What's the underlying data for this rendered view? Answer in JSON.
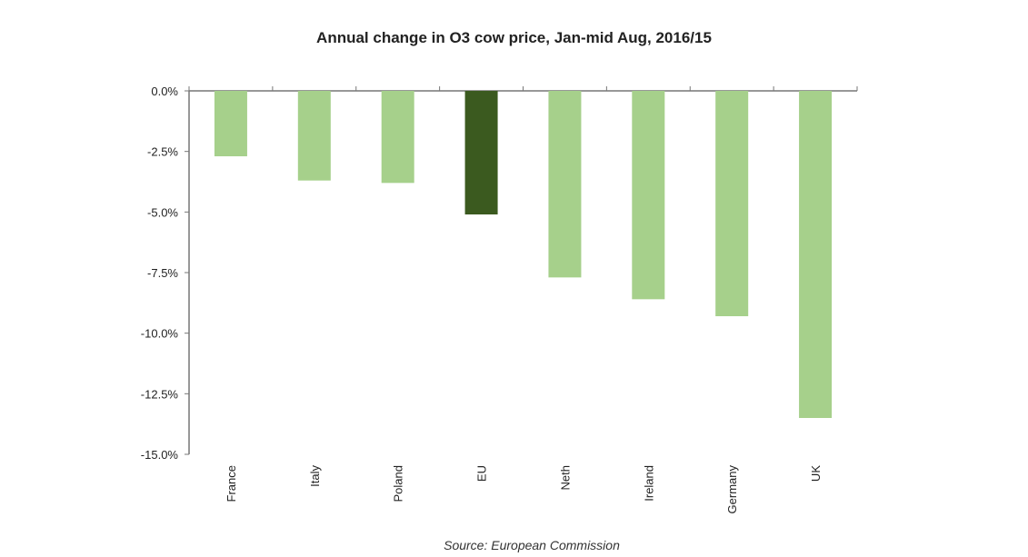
{
  "chart_data": {
    "type": "bar",
    "title": "Annual change in O3 cow price, Jan-mid Aug, 2016/15",
    "source": "Source: European Commission",
    "categories": [
      "France",
      "Italy",
      "Poland",
      "EU",
      "Neth",
      "Ireland",
      "Germany",
      "UK"
    ],
    "values": [
      -2.7,
      -3.7,
      -3.8,
      -5.1,
      -7.7,
      -8.6,
      -9.3,
      -13.5
    ],
    "ylim": [
      -15,
      0
    ],
    "yticks": [
      0,
      -2.5,
      -5,
      -7.5,
      -10,
      -12.5,
      -15
    ],
    "ytick_labels": [
      "0.0%",
      "-2.5%",
      "-5.0%",
      "-7.5%",
      "-10.0%",
      "-12.5%",
      "-15.0%"
    ],
    "xlabel": "",
    "ylabel": "",
    "grid": false,
    "colors": {
      "default": "#a6d08b",
      "highlight": "#3b5a1f"
    },
    "highlight_category": "EU"
  }
}
